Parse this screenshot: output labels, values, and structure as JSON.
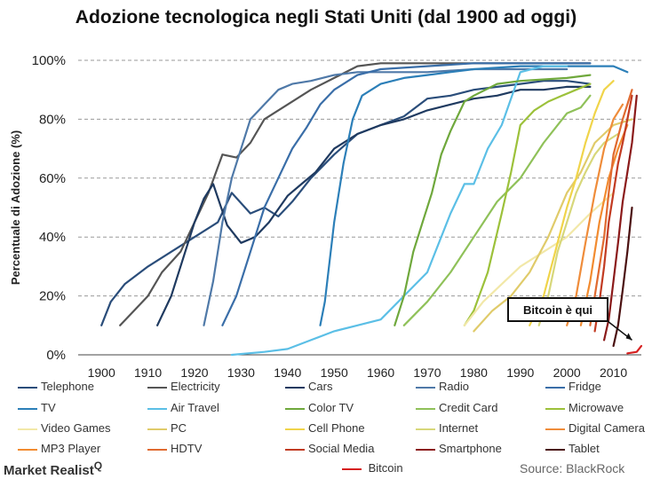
{
  "chart_data": {
    "type": "line",
    "title": "Adozione tecnologica negli Stati Uniti (dal 1900 ad oggi)",
    "ylabel": "Percentuale di Adozione (%)",
    "xlabel": "",
    "xlim": [
      1895,
      2016
    ],
    "ylim": [
      0,
      100
    ],
    "x_ticks": [
      1900,
      1910,
      1920,
      1930,
      1940,
      1950,
      1960,
      1970,
      1980,
      1990,
      2000,
      2010
    ],
    "y_ticks": [
      0,
      20,
      40,
      60,
      80,
      100
    ],
    "y_tick_labels": [
      "0%",
      "20%",
      "40%",
      "60%",
      "80%",
      "100%"
    ],
    "annotation": "Bitcoin è qui",
    "series": [
      {
        "name": "Telephone",
        "color": "#2a4d7a",
        "points": [
          [
            1900,
            10
          ],
          [
            1902,
            18
          ],
          [
            1905,
            24
          ],
          [
            1910,
            30
          ],
          [
            1915,
            35
          ],
          [
            1920,
            40
          ],
          [
            1925,
            45
          ],
          [
            1928,
            55
          ],
          [
            1932,
            48
          ],
          [
            1935,
            50
          ],
          [
            1938,
            47
          ],
          [
            1941,
            52
          ],
          [
            1945,
            60
          ],
          [
            1950,
            68
          ],
          [
            1955,
            75
          ],
          [
            1960,
            78
          ],
          [
            1965,
            81
          ],
          [
            1970,
            87
          ],
          [
            1975,
            88
          ],
          [
            1980,
            90
          ],
          [
            1985,
            91
          ],
          [
            1990,
            92
          ],
          [
            1995,
            93
          ],
          [
            2000,
            93
          ],
          [
            2005,
            92
          ]
        ]
      },
      {
        "name": "Electricity",
        "color": "#555555",
        "points": [
          [
            1904,
            10
          ],
          [
            1907,
            15
          ],
          [
            1910,
            20
          ],
          [
            1913,
            28
          ],
          [
            1917,
            35
          ],
          [
            1920,
            45
          ],
          [
            1923,
            55
          ],
          [
            1926,
            68
          ],
          [
            1929,
            67
          ],
          [
            1932,
            72
          ],
          [
            1935,
            80
          ],
          [
            1940,
            85
          ],
          [
            1945,
            90
          ],
          [
            1950,
            94
          ],
          [
            1955,
            98
          ],
          [
            1960,
            99
          ],
          [
            1970,
            99
          ],
          [
            1990,
            99
          ],
          [
            2005,
            99
          ]
        ]
      },
      {
        "name": "Cars",
        "color": "#1f3a60",
        "points": [
          [
            1912,
            10
          ],
          [
            1915,
            20
          ],
          [
            1918,
            35
          ],
          [
            1920,
            45
          ],
          [
            1922,
            53
          ],
          [
            1924,
            58
          ],
          [
            1927,
            44
          ],
          [
            1930,
            38
          ],
          [
            1933,
            40
          ],
          [
            1936,
            45
          ],
          [
            1940,
            54
          ],
          [
            1943,
            58
          ],
          [
            1946,
            62
          ],
          [
            1950,
            70
          ],
          [
            1955,
            75
          ],
          [
            1960,
            78
          ],
          [
            1965,
            80
          ],
          [
            1970,
            83
          ],
          [
            1975,
            85
          ],
          [
            1980,
            87
          ],
          [
            1985,
            88
          ],
          [
            1990,
            90
          ],
          [
            1995,
            90
          ],
          [
            2000,
            91
          ],
          [
            2005,
            91
          ]
        ]
      },
      {
        "name": "Radio",
        "color": "#4f79a8",
        "points": [
          [
            1922,
            10
          ],
          [
            1924,
            25
          ],
          [
            1926,
            45
          ],
          [
            1928,
            60
          ],
          [
            1930,
            70
          ],
          [
            1932,
            80
          ],
          [
            1935,
            85
          ],
          [
            1938,
            90
          ],
          [
            1941,
            92
          ],
          [
            1945,
            93
          ],
          [
            1950,
            95
          ],
          [
            1955,
            96
          ],
          [
            1960,
            96
          ],
          [
            1970,
            96
          ],
          [
            1980,
            97
          ],
          [
            1990,
            97
          ],
          [
            2000,
            97
          ]
        ]
      },
      {
        "name": "Fridge",
        "color": "#3a6ea8",
        "points": [
          [
            1926,
            10
          ],
          [
            1929,
            20
          ],
          [
            1932,
            35
          ],
          [
            1935,
            50
          ],
          [
            1938,
            60
          ],
          [
            1941,
            70
          ],
          [
            1944,
            77
          ],
          [
            1947,
            85
          ],
          [
            1950,
            90
          ],
          [
            1955,
            95
          ],
          [
            1960,
            97
          ],
          [
            1970,
            98
          ],
          [
            1980,
            99
          ],
          [
            1990,
            99
          ],
          [
            2005,
            99
          ]
        ]
      },
      {
        "name": "TV",
        "color": "#2c7fb8",
        "points": [
          [
            1947,
            10
          ],
          [
            1948,
            18
          ],
          [
            1950,
            45
          ],
          [
            1952,
            65
          ],
          [
            1954,
            80
          ],
          [
            1956,
            88
          ],
          [
            1958,
            90
          ],
          [
            1960,
            92
          ],
          [
            1965,
            94
          ],
          [
            1970,
            95
          ],
          [
            1980,
            97
          ],
          [
            1990,
            98
          ],
          [
            2000,
            98
          ],
          [
            2010,
            98
          ],
          [
            2013,
            96
          ]
        ]
      },
      {
        "name": "Air Travel",
        "color": "#5bbfe6",
        "points": [
          [
            1928,
            0
          ],
          [
            1935,
            1
          ],
          [
            1940,
            2
          ],
          [
            1945,
            5
          ],
          [
            1950,
            8
          ],
          [
            1955,
            10
          ],
          [
            1960,
            12
          ],
          [
            1965,
            20
          ],
          [
            1970,
            28
          ],
          [
            1975,
            48
          ],
          [
            1978,
            58
          ],
          [
            1980,
            58
          ],
          [
            1983,
            70
          ],
          [
            1986,
            78
          ],
          [
            1990,
            96
          ],
          [
            1995,
            98
          ],
          [
            2000,
            98
          ]
        ]
      },
      {
        "name": "Color TV",
        "color": "#6fa83c",
        "points": [
          [
            1963,
            10
          ],
          [
            1965,
            20
          ],
          [
            1967,
            35
          ],
          [
            1969,
            45
          ],
          [
            1971,
            55
          ],
          [
            1973,
            68
          ],
          [
            1975,
            76
          ],
          [
            1978,
            86
          ],
          [
            1980,
            88
          ],
          [
            1985,
            92
          ],
          [
            1990,
            93
          ],
          [
            2000,
            94
          ],
          [
            2005,
            95
          ]
        ]
      },
      {
        "name": "Credit Card",
        "color": "#8fc159",
        "points": [
          [
            1965,
            10
          ],
          [
            1970,
            18
          ],
          [
            1975,
            28
          ],
          [
            1980,
            40
          ],
          [
            1985,
            52
          ],
          [
            1990,
            60
          ],
          [
            1995,
            72
          ],
          [
            2000,
            82
          ],
          [
            2003,
            84
          ],
          [
            2005,
            88
          ]
        ]
      },
      {
        "name": "Microwave",
        "color": "#9cc13a",
        "points": [
          [
            1978,
            10
          ],
          [
            1980,
            15
          ],
          [
            1983,
            28
          ],
          [
            1986,
            48
          ],
          [
            1988,
            62
          ],
          [
            1990,
            78
          ],
          [
            1993,
            83
          ],
          [
            1996,
            86
          ],
          [
            1999,
            88
          ],
          [
            2002,
            90
          ],
          [
            2005,
            92
          ]
        ]
      },
      {
        "name": "Video Games",
        "color": "#f2e8a8",
        "points": [
          [
            1978,
            10
          ],
          [
            1982,
            18
          ],
          [
            1986,
            24
          ],
          [
            1990,
            30
          ],
          [
            1995,
            35
          ],
          [
            2000,
            40
          ],
          [
            2005,
            48
          ],
          [
            2010,
            55
          ]
        ]
      },
      {
        "name": "PC",
        "color": "#e0cb6a",
        "points": [
          [
            1980,
            8
          ],
          [
            1984,
            15
          ],
          [
            1988,
            20
          ],
          [
            1992,
            28
          ],
          [
            1996,
            40
          ],
          [
            2000,
            55
          ],
          [
            2003,
            62
          ],
          [
            2006,
            72
          ],
          [
            2010,
            78
          ],
          [
            2014,
            80
          ]
        ]
      },
      {
        "name": "Cell Phone",
        "color": "#f0d44a",
        "points": [
          [
            1992,
            10
          ],
          [
            1995,
            20
          ],
          [
            1998,
            38
          ],
          [
            2000,
            50
          ],
          [
            2002,
            60
          ],
          [
            2004,
            72
          ],
          [
            2006,
            82
          ],
          [
            2008,
            90
          ],
          [
            2010,
            93
          ]
        ]
      },
      {
        "name": "Internet",
        "color": "#d7d77a",
        "points": [
          [
            1994,
            10
          ],
          [
            1996,
            20
          ],
          [
            1998,
            35
          ],
          [
            2000,
            45
          ],
          [
            2002,
            55
          ],
          [
            2004,
            62
          ],
          [
            2006,
            68
          ],
          [
            2008,
            72
          ],
          [
            2011,
            75
          ]
        ]
      },
      {
        "name": "Digital Camera",
        "color": "#ef8c3a",
        "points": [
          [
            2000,
            10
          ],
          [
            2002,
            20
          ],
          [
            2004,
            38
          ],
          [
            2006,
            55
          ],
          [
            2008,
            70
          ],
          [
            2010,
            80
          ],
          [
            2012,
            85
          ]
        ]
      },
      {
        "name": "MP3 Player",
        "color": "#f28b30",
        "points": [
          [
            2003,
            10
          ],
          [
            2005,
            25
          ],
          [
            2007,
            45
          ],
          [
            2009,
            60
          ],
          [
            2011,
            70
          ],
          [
            2013,
            78
          ]
        ]
      },
      {
        "name": "HDTV",
        "color": "#e06a30",
        "points": [
          [
            2005,
            10
          ],
          [
            2006,
            20
          ],
          [
            2008,
            40
          ],
          [
            2009,
            55
          ],
          [
            2010,
            68
          ],
          [
            2012,
            80
          ],
          [
            2014,
            90
          ]
        ]
      },
      {
        "name": "Social Media",
        "color": "#c23b22",
        "points": [
          [
            2006,
            8
          ],
          [
            2007,
            18
          ],
          [
            2008,
            30
          ],
          [
            2009,
            45
          ],
          [
            2010,
            55
          ],
          [
            2011,
            65
          ],
          [
            2012,
            72
          ],
          [
            2013,
            80
          ],
          [
            2014,
            88
          ]
        ]
      },
      {
        "name": "Smartphone",
        "color": "#8b1a1a",
        "points": [
          [
            2008,
            5
          ],
          [
            2009,
            12
          ],
          [
            2010,
            25
          ],
          [
            2011,
            38
          ],
          [
            2012,
            52
          ],
          [
            2013,
            62
          ],
          [
            2014,
            72
          ],
          [
            2015,
            88
          ]
        ]
      },
      {
        "name": "Tablet",
        "color": "#4a1010",
        "points": [
          [
            2010,
            3
          ],
          [
            2011,
            10
          ],
          [
            2012,
            22
          ],
          [
            2013,
            35
          ],
          [
            2014,
            50
          ]
        ]
      },
      {
        "name": "Bitcoin",
        "color": "#d62020",
        "points": [
          [
            2013,
            0.5
          ],
          [
            2015,
            1
          ],
          [
            2016,
            3
          ]
        ]
      }
    ]
  },
  "legend": {
    "brand": "Market Realist",
    "brand_mark": "Q",
    "source": "Source: BlackRock"
  }
}
